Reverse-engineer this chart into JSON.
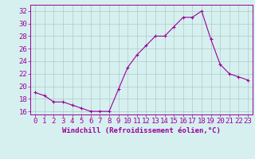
{
  "x": [
    0,
    1,
    2,
    3,
    4,
    5,
    6,
    7,
    8,
    9,
    10,
    11,
    12,
    13,
    14,
    15,
    16,
    17,
    18,
    19,
    20,
    21,
    22,
    23
  ],
  "y": [
    19.0,
    18.5,
    17.5,
    17.5,
    17.0,
    16.5,
    16.0,
    16.0,
    16.0,
    19.5,
    23.0,
    25.0,
    26.5,
    28.0,
    28.0,
    29.5,
    31.0,
    31.0,
    32.0,
    27.5,
    23.5,
    22.0,
    21.5,
    21.0
  ],
  "line_color": "#990099",
  "marker": "+",
  "bg_color": "#d6f0f0",
  "grid_color": "#b0c8c8",
  "ylabel_ticks": [
    16,
    18,
    20,
    22,
    24,
    26,
    28,
    30,
    32
  ],
  "xlabel": "Windchill (Refroidissement éolien,°C)",
  "xlim": [
    -0.5,
    23.5
  ],
  "ylim": [
    15.5,
    33.0
  ],
  "tick_color": "#990099",
  "label_color": "#990099",
  "font_size_xlabel": 6.5,
  "font_size_ticks": 6.5
}
